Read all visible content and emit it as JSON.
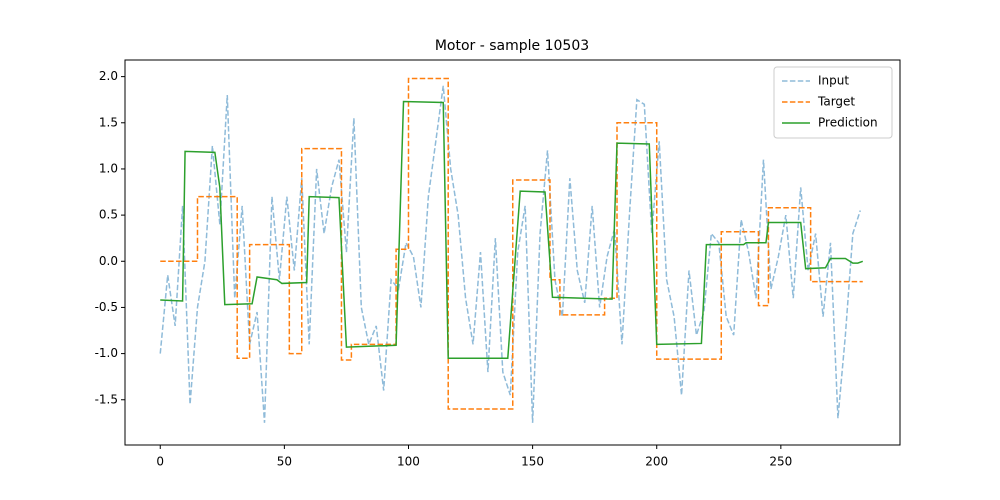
{
  "chart_data": {
    "type": "line",
    "title": "Motor - sample 10503",
    "xlim": [
      -14.2,
      298
    ],
    "ylim": [
      -1.99,
      2.18
    ],
    "xticks": [
      0,
      50,
      100,
      150,
      200,
      250
    ],
    "yticks": [
      -1.5,
      {
        "value": -1,
        "label": "-1.0"
      },
      -0.5,
      {
        "value": 0,
        "label": "0.0"
      },
      0.5,
      {
        "value": 1,
        "label": "1.0"
      },
      1.5,
      {
        "value": 2,
        "label": "2.0"
      }
    ],
    "legend": "upper right",
    "series": [
      {
        "name": "Input",
        "color": "#1f77b4",
        "linestyle": "dashed",
        "opacity": 0.5,
        "x": [
          0,
          3,
          6,
          9,
          12,
          15,
          18,
          21,
          24,
          27,
          30,
          33,
          36,
          39,
          42,
          45,
          48,
          51,
          54,
          57,
          60,
          63,
          66,
          69,
          72,
          75,
          78,
          81,
          84,
          87,
          90,
          93,
          96,
          99,
          102,
          105,
          108,
          111,
          114,
          117,
          120,
          123,
          126,
          129,
          132,
          135,
          138,
          141,
          144,
          147,
          150,
          153,
          156,
          159,
          162,
          165,
          168,
          171,
          174,
          177,
          180,
          183,
          186,
          189,
          192,
          195,
          198,
          201,
          204,
          207,
          210,
          213,
          216,
          219,
          222,
          225,
          228,
          231,
          234,
          237,
          240,
          243,
          246,
          249,
          252,
          255,
          258,
          261,
          264,
          267,
          270,
          273,
          276,
          279,
          282
        ],
        "values": [
          -1.0,
          -0.15,
          -0.7,
          0.6,
          -1.55,
          -0.5,
          0.0,
          1.25,
          0.4,
          1.8,
          -0.4,
          0.6,
          -0.9,
          -0.55,
          -1.75,
          0.7,
          -0.2,
          0.7,
          -0.1,
          0.9,
          -0.9,
          1.0,
          0.3,
          0.8,
          1.1,
          0.1,
          1.55,
          -0.5,
          -0.9,
          -0.7,
          -1.4,
          -0.2,
          -0.3,
          0.2,
          0.05,
          -0.5,
          0.7,
          1.3,
          1.9,
          1.0,
          0.5,
          -0.4,
          -0.9,
          0.1,
          -1.2,
          0.25,
          -1.2,
          -1.45,
          0.1,
          0.6,
          -1.75,
          0.3,
          1.2,
          -0.2,
          -0.6,
          0.9,
          -0.1,
          -0.45,
          0.6,
          -0.5,
          0.05,
          0.35,
          -0.9,
          0.5,
          1.75,
          1.7,
          0.3,
          1.3,
          -0.2,
          -0.6,
          -1.45,
          -0.1,
          -0.8,
          -0.55,
          0.3,
          0.2,
          -0.6,
          -0.8,
          0.45,
          0.1,
          -0.4,
          1.1,
          -0.3,
          0.05,
          0.5,
          -0.4,
          0.8,
          -0.1,
          0.3,
          -0.6,
          0.2,
          -1.7,
          -0.8,
          0.3,
          0.55
        ]
      },
      {
        "name": "Target",
        "color": "#ff7f0e",
        "linestyle": "dashed",
        "opacity": 1,
        "x": [
          0,
          15,
          15,
          31,
          31,
          36,
          36,
          52,
          52,
          57,
          57,
          73,
          73,
          77,
          77,
          95,
          95,
          100,
          100,
          116,
          116,
          142,
          142,
          157,
          157,
          161,
          161,
          179,
          179,
          184,
          184,
          200,
          200,
          226,
          226,
          241,
          241,
          245,
          245,
          262,
          262,
          283
        ],
        "values": [
          0,
          0,
          0.7,
          0.7,
          -1.05,
          -1.05,
          0.18,
          0.18,
          -1.0,
          -1.0,
          1.22,
          1.22,
          -1.07,
          -1.07,
          -0.9,
          -0.9,
          0.13,
          0.13,
          1.98,
          1.98,
          -1.6,
          -1.6,
          0.88,
          0.88,
          -0.2,
          -0.2,
          -0.58,
          -0.58,
          -0.4,
          -0.4,
          1.5,
          1.5,
          -1.06,
          -1.06,
          0.32,
          0.32,
          -0.48,
          -0.48,
          0.58,
          0.58,
          -0.22,
          -0.22
        ]
      },
      {
        "name": "Prediction",
        "color": "#2ca02c",
        "linestyle": "solid",
        "opacity": 1,
        "x": [
          0,
          9,
          10,
          22,
          24,
          26,
          37,
          39,
          47,
          49,
          59,
          60,
          72,
          75,
          95,
          98,
          114,
          116,
          140,
          145,
          155,
          158,
          182,
          184,
          197,
          200,
          218,
          220,
          235,
          236,
          244,
          245,
          258,
          260,
          268,
          270,
          276,
          279,
          281,
          283
        ],
        "values": [
          -0.42,
          -0.43,
          1.19,
          1.18,
          0.8,
          -0.47,
          -0.46,
          -0.17,
          -0.2,
          -0.24,
          -0.23,
          0.7,
          0.69,
          -0.93,
          -0.91,
          1.73,
          1.72,
          -1.05,
          -1.05,
          0.76,
          0.75,
          -0.39,
          -0.41,
          1.28,
          1.27,
          -0.9,
          -0.89,
          0.18,
          0.18,
          0.2,
          0.2,
          0.42,
          0.42,
          -0.08,
          -0.07,
          0.03,
          0.03,
          -0.02,
          -0.02,
          0
        ]
      }
    ]
  }
}
